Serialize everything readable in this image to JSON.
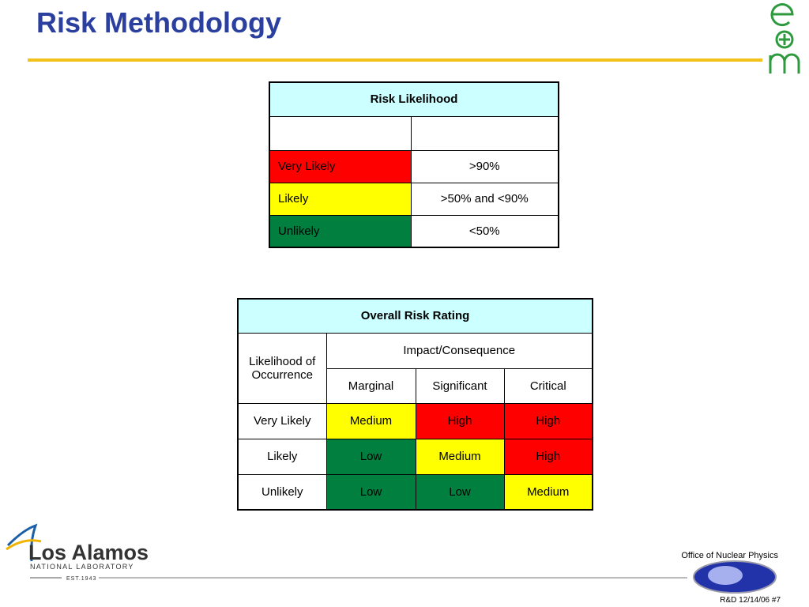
{
  "header": {
    "title": "Risk Methodology"
  },
  "likelihood_table": {
    "title": "Risk Likelihood",
    "rows": [
      {
        "label": "Very Likely",
        "range": ">90%",
        "color": "#ff0000"
      },
      {
        "label": "Likely",
        "range": ">50% and <90%",
        "color": "#ffff00"
      },
      {
        "label": "Unlikely",
        "range": "<50%",
        "color": "#007f3f"
      }
    ]
  },
  "rating_table": {
    "title": "Overall Risk Rating",
    "row_header": "Likelihood of Occurrence",
    "column_group": "Impact/Consequence",
    "columns": [
      "Marginal",
      "Significant",
      "Critical"
    ],
    "rows": [
      {
        "label": "Very Likely",
        "cells": [
          "Medium",
          "High",
          "High"
        ],
        "colors": [
          "#ffff00",
          "#ff0000",
          "#ff0000"
        ]
      },
      {
        "label": "Likely",
        "cells": [
          "Low",
          "Medium",
          "High"
        ],
        "colors": [
          "#007f3f",
          "#ffff00",
          "#ff0000"
        ]
      },
      {
        "label": "Unlikely",
        "cells": [
          "Low",
          "Low",
          "Medium"
        ],
        "colors": [
          "#007f3f",
          "#007f3f",
          "#ffff00"
        ]
      }
    ]
  },
  "footer": {
    "lab_name": "Los Alamos",
    "lab_subtitle": "NATIONAL LABORATORY",
    "lab_established": "EST.1943",
    "office": "Office of Nuclear Physics",
    "slide_ref": "R&D 12/14/06  #7"
  }
}
